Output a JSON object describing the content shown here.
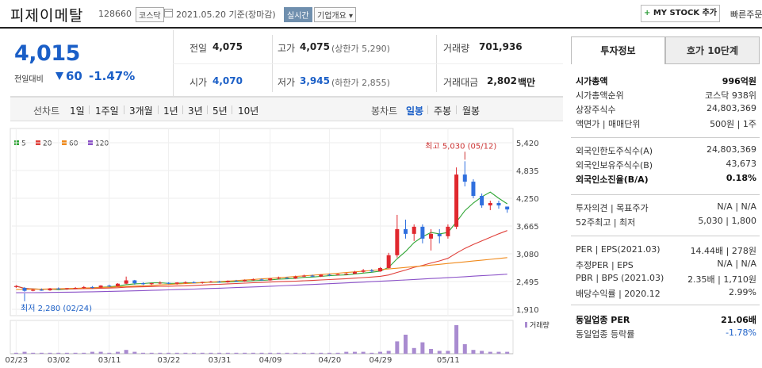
{
  "header": {
    "stock_name": "피제이메탈",
    "stock_code": "128660",
    "market": "코스닥",
    "date_text": "2021.05.20 기준(장마감)",
    "realtime_label": "실시간",
    "company_label": "기업개요 ▾",
    "mystock_plus": "+",
    "mystock_label": "MY STOCK 추가",
    "order_label": "빠른주문"
  },
  "price": {
    "current": "4,015",
    "change_label": "전일대비",
    "change_abs": "60",
    "change_pct": "-1.47%",
    "prev_close_label": "전일",
    "prev_close": "4,075",
    "high_label": "고가",
    "high": "4,075",
    "upper_limit": "(상한가 5,290)",
    "volume_label": "거래량",
    "volume": "701,936",
    "open_label": "시가",
    "open": "4,070",
    "low_label": "저가",
    "low": "3,945",
    "lower_limit": "(하한가 2,855)",
    "amount_label": "거래대금",
    "amount": "2,802",
    "amount_unit": "백만"
  },
  "periods": {
    "line_label": "선차트",
    "items": [
      "1일",
      "1주일",
      "3개월",
      "1년",
      "3년",
      "5년",
      "10년"
    ],
    "candle_label": "봉차트",
    "candle_items": [
      "일봉",
      "주봉",
      "월봉"
    ],
    "active_candle": "일봉"
  },
  "chart_data": {
    "type": "candlestick",
    "legend": [
      "5",
      "20",
      "60",
      "120"
    ],
    "colors": {
      "ma5": "#2fa534",
      "ma20": "#e0403a",
      "ma60": "#f08a1c",
      "ma120": "#8b52c8",
      "up": "#e0282e",
      "down": "#2f6fde"
    },
    "y_ticks": [
      "5,420",
      "4,835",
      "4,250",
      "3,665",
      "3,080",
      "2,495",
      "1,910"
    ],
    "ylim": [
      1910,
      5420
    ],
    "x_ticks": [
      "02/23",
      "03/02",
      "03/11",
      "03/22",
      "03/31",
      "04/09",
      "04/20",
      "04/29",
      "05/11"
    ],
    "high_annotation": "최고 5,030 (05/12)",
    "low_annotation": "최저 2,280 (02/24)",
    "volume_label": "거래량",
    "candles": [
      [
        2380,
        2420,
        2360,
        2400
      ],
      [
        2360,
        2380,
        2280,
        2300
      ],
      [
        2300,
        2340,
        2290,
        2320
      ],
      [
        2320,
        2350,
        2300,
        2310
      ],
      [
        2310,
        2360,
        2300,
        2350
      ],
      [
        2350,
        2370,
        2330,
        2340
      ],
      [
        2340,
        2360,
        2320,
        2355
      ],
      [
        2355,
        2380,
        2340,
        2360
      ],
      [
        2360,
        2400,
        2340,
        2380
      ],
      [
        2380,
        2400,
        2350,
        2370
      ],
      [
        2370,
        2420,
        2360,
        2410
      ],
      [
        2410,
        2430,
        2380,
        2395
      ],
      [
        2395,
        2460,
        2390,
        2450
      ],
      [
        2450,
        2600,
        2440,
        2520
      ],
      [
        2520,
        2530,
        2430,
        2460
      ],
      [
        2460,
        2480,
        2420,
        2440
      ],
      [
        2440,
        2470,
        2420,
        2460
      ],
      [
        2460,
        2500,
        2440,
        2470
      ],
      [
        2470,
        2480,
        2440,
        2450
      ],
      [
        2450,
        2480,
        2430,
        2475
      ],
      [
        2475,
        2500,
        2450,
        2480
      ],
      [
        2480,
        2500,
        2460,
        2470
      ],
      [
        2470,
        2490,
        2450,
        2485
      ],
      [
        2485,
        2510,
        2470,
        2495
      ],
      [
        2495,
        2510,
        2470,
        2480
      ],
      [
        2480,
        2520,
        2470,
        2510
      ],
      [
        2510,
        2530,
        2490,
        2500
      ],
      [
        2500,
        2540,
        2490,
        2530
      ],
      [
        2530,
        2560,
        2510,
        2540
      ],
      [
        2540,
        2560,
        2510,
        2520
      ],
      [
        2520,
        2570,
        2510,
        2560
      ],
      [
        2560,
        2600,
        2540,
        2575
      ],
      [
        2575,
        2590,
        2550,
        2560
      ],
      [
        2560,
        2620,
        2550,
        2600
      ],
      [
        2600,
        2640,
        2580,
        2620
      ],
      [
        2620,
        2640,
        2590,
        2600
      ],
      [
        2600,
        2650,
        2590,
        2640
      ],
      [
        2640,
        2660,
        2610,
        2630
      ],
      [
        2630,
        2660,
        2620,
        2650
      ],
      [
        2650,
        2680,
        2630,
        2660
      ],
      [
        2660,
        2720,
        2650,
        2700
      ],
      [
        2700,
        2760,
        2680,
        2730
      ],
      [
        2730,
        2760,
        2690,
        2710
      ],
      [
        2710,
        2800,
        2700,
        2780
      ],
      [
        2780,
        3100,
        2770,
        3050
      ],
      [
        3050,
        3900,
        3000,
        3600
      ],
      [
        3600,
        3800,
        3400,
        3500
      ],
      [
        3500,
        3700,
        3350,
        3650
      ],
      [
        3650,
        3700,
        3300,
        3400
      ],
      [
        3400,
        3600,
        3150,
        3500
      ],
      [
        3500,
        3600,
        3300,
        3450
      ],
      [
        3450,
        3700,
        3400,
        3650
      ],
      [
        3650,
        4900,
        3600,
        4750
      ],
      [
        4750,
        5030,
        4500,
        4600
      ],
      [
        4600,
        4650,
        4250,
        4300
      ],
      [
        4300,
        4350,
        4050,
        4100
      ],
      [
        4100,
        4200,
        4000,
        4150
      ],
      [
        4150,
        4200,
        4030,
        4100
      ],
      [
        4075,
        4075,
        3945,
        4015
      ]
    ],
    "volumes": [
      1,
      2,
      1,
      1,
      1,
      1,
      1,
      1,
      1,
      2,
      2,
      1,
      2,
      4,
      2,
      1,
      1,
      1,
      1,
      1,
      1,
      1,
      1,
      1,
      1,
      1,
      1,
      1,
      1,
      1,
      1,
      1,
      1,
      1,
      1,
      1,
      1,
      1,
      1,
      2,
      2,
      2,
      1,
      2,
      3,
      13,
      20,
      6,
      12,
      5,
      3,
      3,
      30,
      10,
      4,
      3,
      2,
      2,
      2
    ]
  },
  "invest_info": {
    "tab_info": "투자정보",
    "tab_hoga": "호가 10단계",
    "rows1": [
      {
        "l": "시가총액",
        "r": "996억원",
        "bold": true
      },
      {
        "l": "시가총액순위",
        "r": "코스닥 938위"
      },
      {
        "l": "상장주식수",
        "r": "24,803,369"
      },
      {
        "l": "액면가 | 매매단위",
        "r": "500원 | 1주"
      }
    ],
    "rows2": [
      {
        "l": "외국인한도주식수(A)",
        "r": "24,803,369"
      },
      {
        "l": "외국인보유주식수(B)",
        "r": "43,673"
      },
      {
        "l": "외국인소진율(B/A)",
        "r": "0.18%",
        "bold": true
      }
    ],
    "rows3": [
      {
        "l": "투자의견 | 목표주가",
        "r": "N/A | N/A"
      },
      {
        "l": "52주최고 | 최저",
        "r": "5,030 | 1,800"
      }
    ],
    "rows4": [
      {
        "l": "PER | EPS(2021.03)",
        "r": "14.44배 | 278원"
      },
      {
        "l": "추정PER | EPS",
        "r": "N/A | N/A"
      },
      {
        "l": "PBR | BPS (2021.03)",
        "r": "2.35배 | 1,710원"
      },
      {
        "l": "배당수익률 | 2020.12",
        "r": "2.99%"
      }
    ],
    "rows5": [
      {
        "l": "동일업종 PER",
        "r": "21.06배",
        "bold": true
      },
      {
        "l": "동일업종 등락률",
        "r": "-1.78%",
        "blue": true
      }
    ]
  }
}
